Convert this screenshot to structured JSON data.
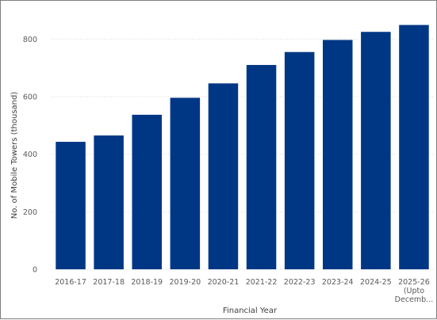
{
  "chart_data": {
    "type": "bar",
    "title": "",
    "xlabel": "Financial Year",
    "ylabel": "No. of Mobile Towers (thousand)",
    "ylim": [
      0,
      900
    ],
    "yticks": [
      0,
      200,
      400,
      600,
      800
    ],
    "grid": true,
    "categories": [
      [
        "2016-17"
      ],
      [
        "2017-18"
      ],
      [
        "2018-19"
      ],
      [
        "2019-20"
      ],
      [
        "2020-21"
      ],
      [
        "2021-22"
      ],
      [
        "2022-23"
      ],
      [
        "2023-24"
      ],
      [
        "2024-25"
      ],
      [
        "2025-26",
        "(Upto",
        "Decemb..."
      ]
    ],
    "series": [
      {
        "values": [
          443,
          465,
          537,
          596,
          646,
          710,
          755,
          797,
          825,
          849
        ]
      }
    ],
    "colors": {
      "bar": "#003785",
      "grid": "#d9d9d9",
      "text": "#595959"
    }
  }
}
